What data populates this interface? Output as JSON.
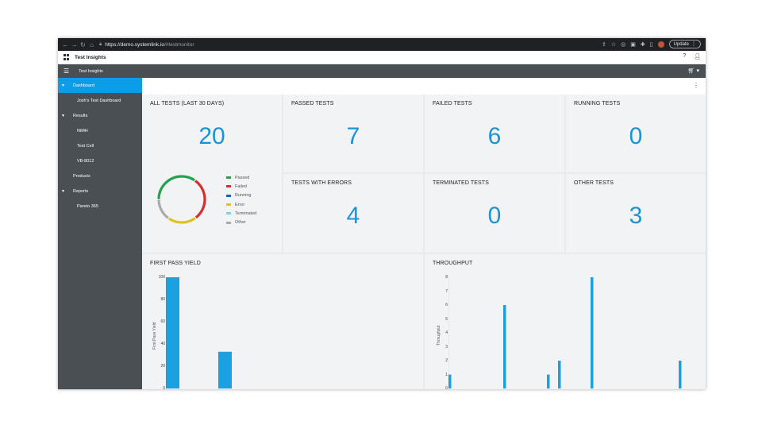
{
  "browser": {
    "url_host": "https://demo.systemlink.io",
    "url_path": "/#testmonitor",
    "update_label": "Update"
  },
  "app": {
    "title": "Test Insights"
  },
  "toolbar": {
    "title": "Test Insights"
  },
  "sidebar": {
    "items": [
      {
        "label": "Dashboard",
        "arrow": "▼",
        "active": true
      },
      {
        "label": "Josh's Test Dashboard",
        "sub": true
      },
      {
        "label": "Results",
        "arrow": "▼"
      },
      {
        "label": "NiMH",
        "sub": true
      },
      {
        "label": "Test Cell",
        "sub": true
      },
      {
        "label": "VB-8012",
        "sub": true
      },
      {
        "label": "Products"
      },
      {
        "label": "Reports",
        "arrow": "▼"
      },
      {
        "label": "Pareto 365",
        "sub": true
      }
    ]
  },
  "cards": {
    "all_tests": {
      "title": "ALL TESTS (LAST 30 DAYS)",
      "value": "20"
    },
    "passed": {
      "title": "PASSED TESTS",
      "value": "7"
    },
    "failed": {
      "title": "FAILED TESTS",
      "value": "6"
    },
    "running": {
      "title": "RUNNING TESTS",
      "value": "0"
    },
    "errors": {
      "title": "TESTS WITH ERRORS",
      "value": "4"
    },
    "terminated": {
      "title": "TERMINATED TESTS",
      "value": "0"
    },
    "other": {
      "title": "OTHER TESTS",
      "value": "3"
    }
  },
  "legend": [
    {
      "label": "Passed",
      "color": "#22a34a"
    },
    {
      "label": "Failed",
      "color": "#d32f2f"
    },
    {
      "label": "Running",
      "color": "#1565c0"
    },
    {
      "label": "Error",
      "color": "#e0c21a"
    },
    {
      "label": "Terminated",
      "color": "#7fd3e6"
    },
    {
      "label": "Other",
      "color": "#aaaaaa"
    }
  ],
  "colors": {
    "accent": "#0c9de8",
    "sidebar": "#4a4f54",
    "bar": "#1ba1e2",
    "number": "#1b94d5"
  },
  "chart_data": [
    {
      "type": "pie",
      "title": "",
      "slices": [
        {
          "label": "Passed",
          "value": 7,
          "color": "#22a34a"
        },
        {
          "label": "Failed",
          "value": 6,
          "color": "#d32f2f"
        },
        {
          "label": "Running",
          "value": 0,
          "color": "#1565c0"
        },
        {
          "label": "Error",
          "value": 4,
          "color": "#e0c21a"
        },
        {
          "label": "Terminated",
          "value": 0,
          "color": "#7fd3e6"
        },
        {
          "label": "Other",
          "value": 3,
          "color": "#aaaaaa"
        }
      ]
    },
    {
      "type": "bar",
      "title": "FIRST PASS YIELD",
      "ylabel": "First Pass Yield",
      "yticks": [
        "100",
        "80",
        "60",
        "40",
        "20",
        "0"
      ],
      "ylim": [
        0,
        100
      ],
      "values": [
        100,
        33
      ]
    },
    {
      "type": "bar",
      "title": "THROUGHPUT",
      "ylabel": "Throughput",
      "yticks": [
        "8",
        "7",
        "6",
        "5",
        "4",
        "3",
        "2",
        "1",
        "0"
      ],
      "ylim": [
        0,
        8
      ],
      "values": [
        1,
        6,
        1,
        2,
        8,
        2
      ]
    }
  ]
}
